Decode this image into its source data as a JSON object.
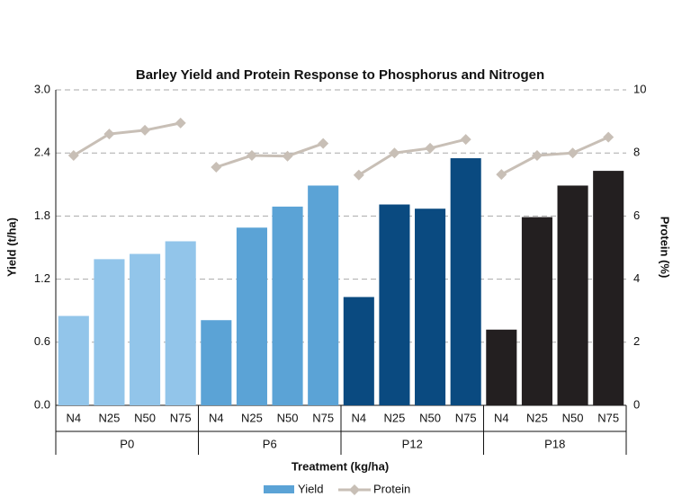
{
  "chart_data": {
    "type": "bar",
    "title": "Barley Yield and Protein Response to Phosphorus and Nitrogen",
    "x_label": "Treatment (kg/ha)",
    "y_label": "Yield (t/ha)",
    "y2_label": "Protein (%)",
    "categories": [
      "N4",
      "N25",
      "N50",
      "N75",
      "N4",
      "N25",
      "N50",
      "N75",
      "N4",
      "N25",
      "N50",
      "N75",
      "N4",
      "N25",
      "N50",
      "N75"
    ],
    "groups": [
      "P0",
      "P6",
      "P12",
      "P18"
    ],
    "group_colors": [
      "#92c5ea",
      "#5ba3d6",
      "#0a4a80",
      "#231f20"
    ],
    "series": [
      {
        "name": "Yield",
        "type": "bar",
        "color": "#5ba3d6",
        "values": [
          0.85,
          1.39,
          1.44,
          1.56,
          0.81,
          1.69,
          1.89,
          2.09,
          1.03,
          1.91,
          1.87,
          2.35,
          0.72,
          1.79,
          2.09,
          2.23
        ]
      },
      {
        "name": "Protein",
        "type": "line",
        "axis": "y2",
        "color": "#c8bfb6",
        "values": [
          7.92,
          8.6,
          8.72,
          8.95,
          7.55,
          7.92,
          7.9,
          8.3,
          7.3,
          8.0,
          8.15,
          8.43,
          7.32,
          7.92,
          8.0,
          8.5
        ]
      }
    ],
    "ylim": [
      0,
      3
    ],
    "yticks": [
      {
        "value": 0,
        "label": "0.0"
      },
      0.6,
      1.2,
      1.8,
      2.4,
      {
        "value": 3,
        "label": "3.0"
      }
    ],
    "y2lim": [
      0,
      10
    ],
    "y2ticks": [
      0,
      2,
      4,
      6,
      8,
      10
    ],
    "grid": true
  }
}
